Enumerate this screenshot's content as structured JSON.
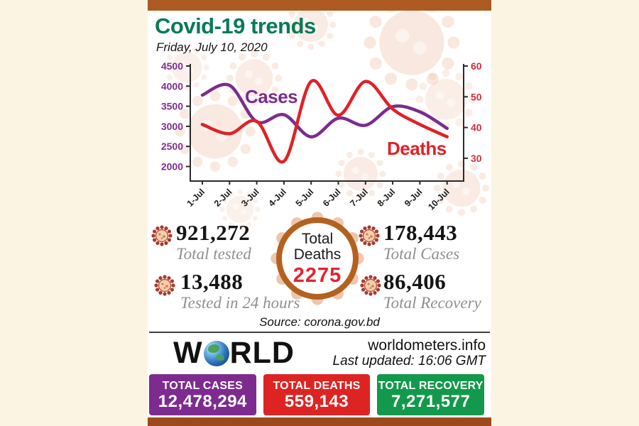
{
  "page": {
    "background_color": "#fcf4e2",
    "card_color": "#ffffff",
    "top_bar_color": "#ad5a23",
    "bottom_bar_color": "#9c4a1b"
  },
  "header": {
    "title": "Covid-19 trends",
    "title_color": "#0a7a57",
    "date": "Friday, July 10, 2020"
  },
  "chart_data": {
    "type": "line",
    "categories": [
      "1-Jul",
      "2-Jul",
      "3-Jul",
      "4-Jul",
      "5-Jul",
      "6-Jul",
      "7-Jul",
      "8-Jul",
      "9-Jul",
      "10-Jul"
    ],
    "series": [
      {
        "name": "Cases",
        "axis": "left",
        "color": "#7b2c8f",
        "values": [
          3775,
          4019,
          3114,
          3288,
          2738,
          3201,
          3027,
          3489,
          3360,
          2949
        ]
      },
      {
        "name": "Deaths",
        "axis": "right",
        "color": "#e02127",
        "values": [
          41,
          38,
          42,
          29,
          55,
          44,
          55,
          46,
          41,
          37
        ]
      }
    ],
    "left_axis": {
      "ticks": [
        4500,
        4000,
        3500,
        3000,
        2500,
        2000
      ],
      "range": [
        2000,
        4500
      ],
      "color": "#7e2f96"
    },
    "right_axis": {
      "ticks": [
        60,
        50,
        40,
        30
      ],
      "range": [
        30,
        60
      ],
      "color": "#cf2f3e"
    },
    "grid": false,
    "legend": "inline-labels",
    "title": "Covid-19 trends",
    "xlabel": "",
    "ylabel": ""
  },
  "stats": {
    "total_tested": {
      "value": "921,272",
      "label": "Total tested"
    },
    "tested_24h": {
      "value": "13,488",
      "label": "Tested in 24 hours"
    },
    "total_cases": {
      "value": "178,443",
      "label": "Total Cases"
    },
    "total_recovery": {
      "value": "86,406",
      "label": "Total Recovery"
    },
    "total_deaths": {
      "label_line1": "Total",
      "label_line2": "Deaths",
      "value": "2275",
      "value_color": "#e42330",
      "ring_color": "#b4611f"
    }
  },
  "source": "Source: corona.gov.bd",
  "worldometer": {
    "brand_w": "W",
    "brand_rld": "RLD",
    "site": "worldometers.info",
    "updated": "Last updated: 16:06 GMT"
  },
  "world_totals": [
    {
      "label": "TOTAL CASES",
      "value": "12,478,294",
      "color": "#7e2b90"
    },
    {
      "label": "TOTAL DEATHS",
      "value": "559,143",
      "color": "#de2423"
    },
    {
      "label": "TOTAL RECOVERY",
      "value": "7,271,577",
      "color": "#12994b"
    }
  ],
  "icons": {
    "stat_bullet": "virus-icon",
    "brand_globe": "globe-icon",
    "watermark": "virus-watermark-icon"
  }
}
